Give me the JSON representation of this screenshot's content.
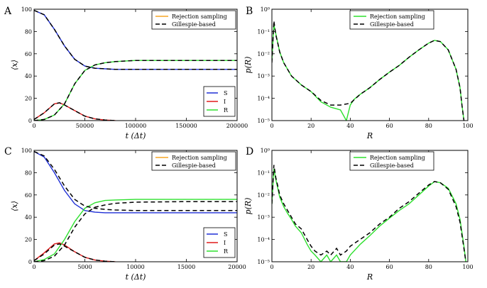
{
  "chart_data": [
    {
      "panel": "A",
      "type": "line",
      "xlabel": "t (Δt)",
      "ylabel": "⟨x⟩",
      "xlim": [
        0,
        200000
      ],
      "ylim": [
        0,
        100
      ],
      "xticks": [
        0,
        50000,
        100000,
        150000,
        200000
      ],
      "yticks": [
        0,
        20,
        40,
        60,
        80,
        100
      ],
      "legend_top": [
        "Rejection sampling",
        "Gillespie-based"
      ],
      "legend_bottom": [
        "S",
        "I",
        "R"
      ],
      "series": [
        {
          "name": "S",
          "method": "Rejection sampling",
          "x": [
            0,
            10000,
            20000,
            30000,
            40000,
            50000,
            60000,
            70000,
            80000,
            100000,
            150000,
            200000
          ],
          "values": [
            99,
            95,
            82,
            67,
            55,
            49,
            47,
            46.5,
            46,
            46,
            46,
            46
          ]
        },
        {
          "name": "I",
          "method": "Rejection sampling",
          "x": [
            0,
            10000,
            20000,
            25000,
            30000,
            40000,
            50000,
            60000,
            70000,
            80000
          ],
          "values": [
            1,
            7,
            15,
            16,
            14,
            9,
            4,
            1.5,
            0.5,
            0
          ]
        },
        {
          "name": "R",
          "method": "Rejection sampling",
          "x": [
            0,
            10000,
            20000,
            30000,
            40000,
            50000,
            60000,
            70000,
            80000,
            100000,
            150000,
            200000
          ],
          "values": [
            0,
            1,
            5,
            15,
            33,
            45,
            50,
            52,
            53,
            54,
            54,
            54
          ]
        },
        {
          "name": "S",
          "method": "Gillespie-based",
          "x": [
            0,
            10000,
            20000,
            30000,
            40000,
            50000,
            60000,
            70000,
            80000,
            100000,
            150000,
            200000
          ],
          "values": [
            99,
            95,
            82,
            67,
            55,
            49,
            47,
            46.5,
            46,
            46,
            46,
            46
          ]
        },
        {
          "name": "I",
          "method": "Gillespie-based",
          "x": [
            0,
            10000,
            20000,
            25000,
            30000,
            40000,
            50000,
            60000,
            70000,
            80000
          ],
          "values": [
            1,
            7,
            15,
            16,
            14,
            9,
            4,
            1.5,
            0.5,
            0
          ]
        },
        {
          "name": "R",
          "method": "Gillespie-based",
          "x": [
            0,
            10000,
            20000,
            30000,
            40000,
            50000,
            60000,
            70000,
            80000,
            100000,
            150000,
            200000
          ],
          "values": [
            0,
            1,
            5,
            15,
            33,
            45,
            50,
            52,
            53,
            54,
            54,
            54
          ]
        }
      ]
    },
    {
      "panel": "B",
      "type": "line",
      "xlabel": "R",
      "ylabel": "p(R)",
      "yscale": "log",
      "xlim": [
        0,
        100
      ],
      "ylim": [
        1e-05,
        1
      ],
      "xticks": [
        0,
        20,
        40,
        60,
        80,
        100
      ],
      "yticks": [
        1e-05,
        0.0001,
        0.001,
        0.01,
        0.1,
        1
      ],
      "ytick_labels": [
        "10⁻⁵",
        "10⁻⁴",
        "10⁻³",
        "10⁻²",
        "10⁻¹",
        "10⁰"
      ],
      "legend_top": [
        "Rejection sampling",
        "Gillespie-based"
      ],
      "series": [
        {
          "name": "Rejection sampling",
          "x": [
            0,
            1,
            2,
            3,
            4,
            6,
            8,
            10,
            12,
            15,
            20,
            25,
            30,
            35,
            38,
            40,
            42,
            45,
            50,
            55,
            60,
            65,
            70,
            75,
            80,
            83,
            86,
            90,
            94,
            96,
            97,
            98
          ],
          "values": [
            0.005,
            0.2,
            0.08,
            0.03,
            0.012,
            0.004,
            0.002,
            0.001,
            0.0007,
            0.0004,
            0.0002,
            7e-05,
            4e-05,
            3e-05,
            1e-05,
            5e-05,
            9e-05,
            0.00015,
            0.0003,
            0.0007,
            0.0015,
            0.003,
            0.007,
            0.015,
            0.03,
            0.04,
            0.035,
            0.015,
            0.002,
            0.0003,
            5e-05,
            1e-05
          ]
        },
        {
          "name": "Gillespie-based",
          "x": [
            0,
            1,
            2,
            3,
            4,
            6,
            8,
            10,
            12,
            15,
            20,
            25,
            30,
            35,
            40,
            45,
            50,
            55,
            60,
            65,
            70,
            75,
            80,
            83,
            86,
            90,
            94,
            96,
            97,
            98
          ],
          "values": [
            0.004,
            0.3,
            0.07,
            0.03,
            0.012,
            0.004,
            0.002,
            0.001,
            0.0007,
            0.0004,
            0.0002,
            8e-05,
            5e-05,
            5e-05,
            6e-05,
            0.00015,
            0.0003,
            0.0007,
            0.0015,
            0.003,
            0.007,
            0.015,
            0.03,
            0.04,
            0.035,
            0.015,
            0.002,
            0.0003,
            5e-05,
            1e-05
          ]
        }
      ]
    },
    {
      "panel": "C",
      "type": "line",
      "xlabel": "t (Δt)",
      "ylabel": "⟨x⟩",
      "xlim": [
        0,
        20000
      ],
      "ylim": [
        0,
        100
      ],
      "xticks": [
        0,
        5000,
        10000,
        15000,
        20000
      ],
      "yticks": [
        0,
        20,
        40,
        60,
        80,
        100
      ],
      "legend_top": [
        "Rejection sampling",
        "Gillespie-based"
      ],
      "legend_bottom": [
        "S",
        "I",
        "R"
      ],
      "series": [
        {
          "name": "S",
          "method": "Rejection sampling",
          "x": [
            0,
            1000,
            2000,
            3000,
            4000,
            5000,
            6000,
            7000,
            8000,
            10000,
            15000,
            20000
          ],
          "values": [
            99,
            94,
            80,
            64,
            52,
            46,
            44.5,
            44,
            44,
            44,
            44,
            44
          ]
        },
        {
          "name": "I",
          "method": "Rejection sampling",
          "x": [
            0,
            1000,
            2000,
            2500,
            3000,
            4000,
            5000,
            6000,
            7000,
            8000
          ],
          "values": [
            1,
            8,
            16,
            17,
            15,
            9,
            4,
            1.5,
            0.5,
            0
          ]
        },
        {
          "name": "R",
          "method": "Rejection sampling",
          "x": [
            0,
            1000,
            2000,
            3000,
            4000,
            5000,
            6000,
            7000,
            8000,
            10000,
            15000,
            20000
          ],
          "values": [
            0,
            2,
            7,
            20,
            36,
            48,
            53,
            55,
            55.5,
            56,
            56,
            56
          ]
        },
        {
          "name": "S",
          "method": "Gillespie-based",
          "x": [
            0,
            1000,
            2000,
            3000,
            4000,
            5000,
            6000,
            7000,
            8000,
            10000,
            15000,
            20000
          ],
          "values": [
            99,
            95,
            83,
            68,
            56,
            50,
            48,
            47,
            46.5,
            46,
            46,
            46
          ]
        },
        {
          "name": "I",
          "method": "Gillespie-based",
          "x": [
            0,
            1000,
            2000,
            2500,
            3000,
            4000,
            5000,
            6000,
            7000,
            8000
          ],
          "values": [
            1,
            7,
            15,
            16,
            14,
            9,
            4,
            1.5,
            0.5,
            0
          ]
        },
        {
          "name": "R",
          "method": "Gillespie-based",
          "x": [
            0,
            1000,
            2000,
            3000,
            4000,
            5000,
            6000,
            7000,
            8000,
            10000,
            15000,
            20000
          ],
          "values": [
            0,
            1,
            5,
            15,
            31,
            43,
            49,
            51,
            52.5,
            53.5,
            54,
            54
          ]
        }
      ]
    },
    {
      "panel": "D",
      "type": "line",
      "xlabel": "R",
      "ylabel": "p(R)",
      "yscale": "log",
      "xlim": [
        0,
        100
      ],
      "ylim": [
        1e-05,
        1
      ],
      "xticks": [
        0,
        20,
        40,
        60,
        80,
        100
      ],
      "yticks": [
        1e-05,
        0.0001,
        0.001,
        0.01,
        0.1,
        1
      ],
      "ytick_labels": [
        "10⁻⁵",
        "10⁻⁴",
        "10⁻³",
        "10⁻²",
        "10⁻¹",
        "10⁰"
      ],
      "legend_top": [
        "Rejection sampling",
        "Gillespie-based"
      ],
      "series": [
        {
          "name": "Rejection sampling",
          "x": [
            0,
            1,
            2,
            3,
            4,
            6,
            8,
            10,
            12,
            15,
            18,
            20,
            22,
            25,
            28,
            30,
            33,
            35,
            38,
            40,
            45,
            50,
            55,
            60,
            65,
            70,
            75,
            80,
            83,
            86,
            90,
            94,
            96,
            98,
            99
          ],
          "values": [
            0.004,
            0.15,
            0.05,
            0.02,
            0.008,
            0.003,
            0.0015,
            0.0008,
            0.0004,
            0.0002,
            6e-05,
            3e-05,
            2e-05,
            1e-05,
            2e-05,
            1e-05,
            2e-05,
            1e-05,
            1e-05,
            2e-05,
            6e-05,
            0.00015,
            0.0004,
            0.0009,
            0.002,
            0.004,
            0.01,
            0.025,
            0.04,
            0.035,
            0.02,
            0.004,
            0.0008,
            5e-05,
            1e-05
          ]
        },
        {
          "name": "Gillespie-based",
          "x": [
            0,
            1,
            2,
            3,
            4,
            6,
            8,
            10,
            12,
            15,
            18,
            20,
            22,
            25,
            28,
            30,
            33,
            35,
            38,
            40,
            45,
            50,
            55,
            60,
            65,
            70,
            75,
            80,
            83,
            86,
            90,
            94,
            96,
            98,
            99
          ],
          "values": [
            0.004,
            0.22,
            0.06,
            0.025,
            0.01,
            0.004,
            0.002,
            0.001,
            0.0005,
            0.0003,
            0.0001,
            5e-05,
            3e-05,
            2e-05,
            3e-05,
            2e-05,
            4e-05,
            2e-05,
            3e-05,
            5e-05,
            0.0001,
            0.0002,
            0.0005,
            0.001,
            0.0025,
            0.005,
            0.012,
            0.028,
            0.04,
            0.035,
            0.018,
            0.003,
            0.0006,
            4e-05,
            1e-05
          ]
        }
      ]
    }
  ],
  "colors": {
    "S": "#1f2fd6",
    "I": "#e01a1a",
    "R": "#2ee02e",
    "rejection_legend": "#f5a623",
    "gillespie": "#000000",
    "rejection_hist": "#2ee02e"
  }
}
